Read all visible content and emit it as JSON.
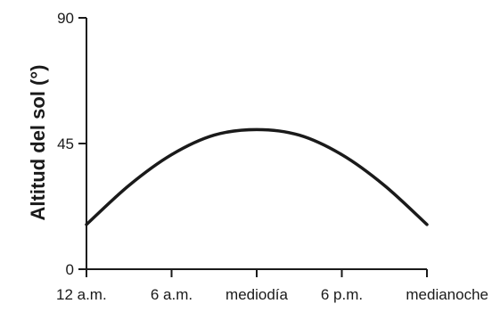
{
  "chart_data": {
    "type": "line",
    "title": "",
    "xlabel": "",
    "ylabel": "Altitud del sol (°)",
    "ylim": [
      0,
      90
    ],
    "yticks": [
      0,
      45,
      90
    ],
    "categories": [
      "12 a.m.",
      "6 a.m.",
      "mediodía",
      "6 p.m.",
      "medianoche"
    ],
    "x": [
      0,
      3,
      6,
      9,
      12,
      15,
      18,
      21,
      24
    ],
    "series": [
      {
        "values": [
          16,
          30,
          41,
          48,
          50,
          48,
          41,
          30,
          16
        ]
      }
    ],
    "grid": false,
    "line_color": "#1a1a1a"
  }
}
